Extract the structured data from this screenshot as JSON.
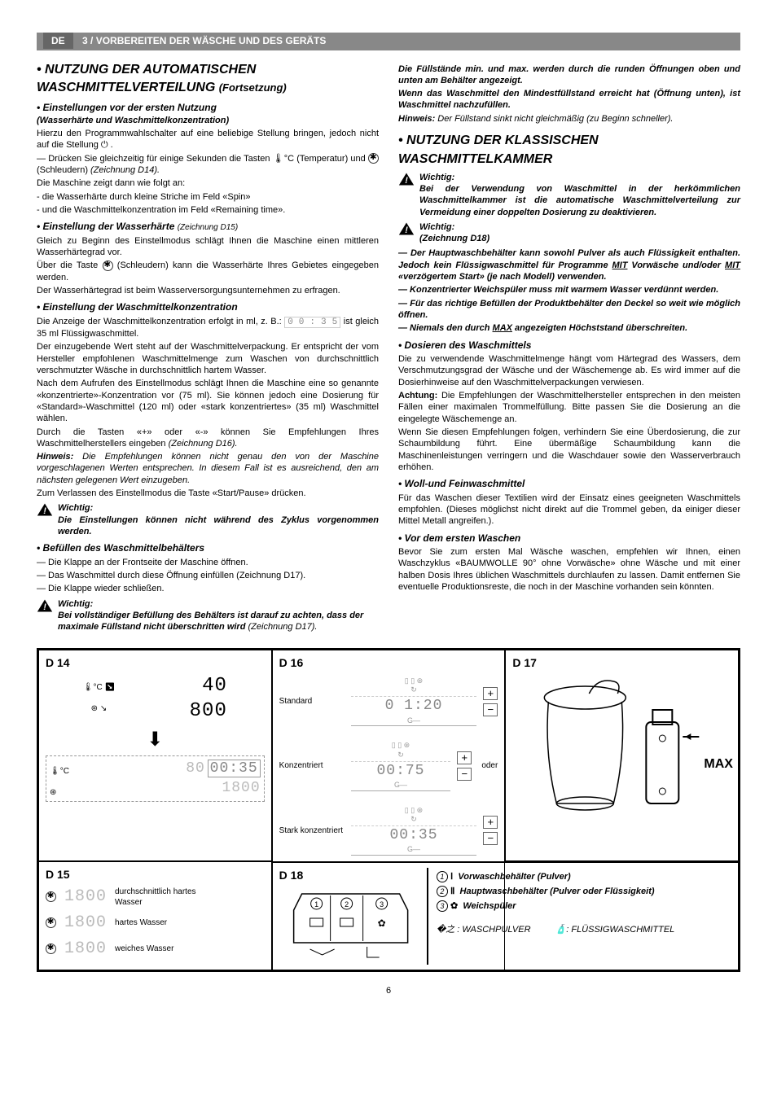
{
  "header": {
    "lang": "DE",
    "section": "3 / VORBEREITEN DER WÄSCHE UND DES GERÄTS"
  },
  "left": {
    "h1a": "• NUTZUNG DER AUTOMATISCHEN",
    "h1b": "WASCHMITTELVERTEILUNG",
    "h1cont": "(Fortsetzung)",
    "s1_h2": "• Einstellungen vor der ersten Nutzung",
    "s1_h3": "(Wasserhärte und Waschmittelkonzentration)",
    "s1_p1": "Hierzu den Programmwahlschalter auf eine beliebige Stellung bringen, jedoch nicht auf die Stellung ⏻ .",
    "s1_p2a": "— Drücken Sie gleichzeitig für einige Sekunden die Tasten ",
    "s1_p2b": " (Temperatur) und ",
    "s1_p2c": " (Schleudern) ",
    "s1_p2d": "(Zeichnung D14).",
    "s1_p3": "Die Maschine zeigt dann wie folgt an:",
    "s1_li1": "- die Wasserhärte durch kleine Striche im Feld «Spin»",
    "s1_li2": "- und die Waschmittelkonzentration im Feld «Remaining time».",
    "s2_h2": "• Einstellung der Wasserhärte",
    "s2_h2_note": "(Zeichnung D15)",
    "s2_p1": "Gleich zu Beginn des Einstellmodus schlägt Ihnen die Maschine einen mittleren Wasserhärtegrad vor.",
    "s2_p2a": "Über die Taste ",
    "s2_p2b": " (Schleudern) kann die Wasserhärte Ihres Gebietes eingegeben werden.",
    "s2_p3": "Der Wasserhärtegrad ist beim Wasserversorgungsunternehmen zu erfragen.",
    "s3_h2": "• Einstellung der Waschmittelkonzentration",
    "s3_p1a": "Die Anzeige der Waschmittelkonzentration erfolgt in ml, z. B.: ",
    "s3_p1seg": "0 0 : 3 5",
    "s3_p1b": " ist gleich 35 ml Flüssigwaschmittel.",
    "s3_p2": "Der einzugebende Wert steht auf der Waschmittelverpackung. Er entspricht der vom Hersteller empfohlenen Waschmittelmenge zum Waschen von durchschnittlich verschmutzter Wäsche in durchschnittlich hartem Wasser.",
    "s3_p3": "Nach dem Aufrufen des Einstellmodus schlägt Ihnen die Maschine eine so genannte «konzentrierte»-Konzentration vor (75 ml). Sie können jedoch eine Dosierung für «Standard»-Waschmittel (120 ml) oder «stark konzentriertes» (35 ml) Waschmittel wählen.",
    "s3_p4": "Durch die Tasten «+» oder «-» können Sie Empfehlungen Ihres Waschmittelherstellers eingeben ",
    "s3_p4_ital": "(Zeichnung D16).",
    "s3_note_label": "Hinweis:",
    "s3_note": " Die Empfehlungen können nicht genau den von der Maschine vorgeschlagenen Werten entsprechen. In diesem Fall ist es ausreichend, den am nächsten gelegenen Wert einzugeben.",
    "s3_p5": "Zum Verlassen des Einstellmodus die Taste «Start/Pause» drücken.",
    "s3_warn_label": "Wichtig:",
    "s3_warn": "Die Einstellungen können nicht während des Zyklus vorgenommen werden.",
    "s4_h2": "• Befüllen des Waschmittelbehälters",
    "s4_li1": "— Die Klappe an der Frontseite der Maschine öffnen.",
    "s4_li2": "— Das Waschmittel durch diese Öffnung einfüllen (Zeichnung D17).",
    "s4_li3": "— Die Klappe wieder schließen.",
    "s4_warn_label": "Wichtig:",
    "s4_warn_a": "Bei vollständiger Befüllung des Behälters ist darauf zu achten, dass der maximale Füllstand nicht überschritten wird",
    "s4_warn_b": " (Zeichnung D17)."
  },
  "right": {
    "r1": "Die Füllstände min. und max. werden durch die runden Öffnungen oben und unten am Behälter angezeigt.",
    "r2": "Wenn das Waschmittel den Mindestfüllstand erreicht hat (Öffnung unten), ist Waschmittel nachzufüllen.",
    "r3_label": "Hinweis:",
    "r3": " Der Füllstand sinkt nicht gleichmäßig (zu Beginn schneller).",
    "h1a": "• NUTZUNG DER KLASSISCHEN",
    "h1b": "WASCHMITTELKAMMER",
    "w1_label": "Wichtig:",
    "w1": "Bei der Verwendung von Waschmittel in der herkömmlichen Waschmittelkammer ist die automatische Waschmittelverteilung zur Vermeidung einer doppelten Dosierung zu deaktivieren.",
    "w2_label": "Wichtig:",
    "w2_sub": "(Zeichnung D18)",
    "w2_p1a": "— Der Hauptwaschbehälter kann sowohl Pulver als auch Flüssigkeit enthalten. Jedoch kein Flüssigwaschmittel für Programme ",
    "w2_p1_u1": "MIT",
    "w2_p1b": " Vorwäsche und/oder ",
    "w2_p1_u2": "MIT",
    "w2_p1c": " «verzögertem Start» (je nach Modell) verwenden.",
    "w2_p2": "— Konzentrierter Weichspüler muss mit warmem Wasser verdünnt werden.",
    "w2_p3": "— Für das richtige Befüllen der Produktbehälter den Deckel so weit wie möglich öffnen.",
    "w2_p4a": "— Niemals den durch ",
    "w2_p4_u": "MAX",
    "w2_p4b": " angezeigten Höchststand überschreiten.",
    "s5_h2": "• Dosieren des Waschmittels",
    "s5_p1": "Die zu verwendende Waschmittelmenge hängt vom Härtegrad des Wassers, dem Verschmutzungsgrad der Wäsche und der Wäschemenge ab. Es wird immer auf die Dosierhinweise auf den Waschmittelverpackungen verwiesen.",
    "s5_p2_label": "Achtung:",
    "s5_p2": " Die Empfehlungen der Waschmittelhersteller entsprechen in den meisten Fällen einer maximalen Trommelfüllung. Bitte passen Sie die Dosierung an die eingelegte Wäschemenge an.",
    "s5_p3": "Wenn Sie diesen Empfehlungen folgen, verhindern Sie eine Überdosierung, die zur Schaumbildung führt. Eine übermäßige Schaumbildung kann die Maschinenleistungen verringern und die Waschdauer sowie den Wasserverbrauch erhöhen.",
    "s6_h2": "• Woll-und Feinwaschmittel",
    "s6_p1": "Für das Waschen dieser Textilien wird der Einsatz eines geeigneten Waschmittels empfohlen. (Dieses möglichst nicht direkt auf die Trommel geben, da einiger dieser Mittel Metall angreifen.).",
    "s7_h2": "• Vor dem ersten Waschen",
    "s7_p1": "Bevor Sie zum ersten Mal Wäsche waschen, empfehlen wir Ihnen, einen Waschzyklus «BAUMWOLLE 90° ohne Vorwäsche» ohne Wäsche und mit einer halben Dosis Ihres üblichen Waschmittels durchlaufen zu lassen. Damit entfernen Sie eventuelle Produktionsreste, die noch in der Maschine vorhanden sein könnten."
  },
  "diagrams": {
    "d14": {
      "label": "D 14",
      "seg1": "40",
      "seg2": "800",
      "seg3a": "80",
      "seg3b": "00:35",
      "seg3c": "1800"
    },
    "d15": {
      "label": "D 15",
      "rows": [
        {
          "seg": "1800",
          "text": "durchschnittlich hartes Wasser"
        },
        {
          "seg": "1800",
          "text": "hartes Wasser"
        },
        {
          "seg": "1800",
          "text": "weiches Wasser"
        }
      ]
    },
    "d16": {
      "label": "D 16",
      "rows": [
        {
          "label": "Standard",
          "seg": "0 1:20"
        },
        {
          "label": "Konzentriert",
          "seg": "00:75",
          "extra": "oder"
        },
        {
          "label": "Stark konzentriert",
          "seg": "00:35"
        }
      ]
    },
    "d17": {
      "label": "D 17",
      "max": "MAX"
    },
    "d18": {
      "label": "D 18",
      "items": [
        {
          "n": "①",
          "sym": "Ⅰ",
          "text": "Vorwaschbehälter (Pulver)"
        },
        {
          "n": "②",
          "sym": "Ⅱ",
          "text": "Hauptwaschbehälter (Pulver oder Flüssigkeit)"
        },
        {
          "n": "③",
          "sym": "✿",
          "text": "Weichspüler"
        }
      ],
      "bottom_left": ": WASCHPULVER",
      "bottom_right": ": FLÜSSIGWASCHMITTEL"
    }
  },
  "page": "6"
}
